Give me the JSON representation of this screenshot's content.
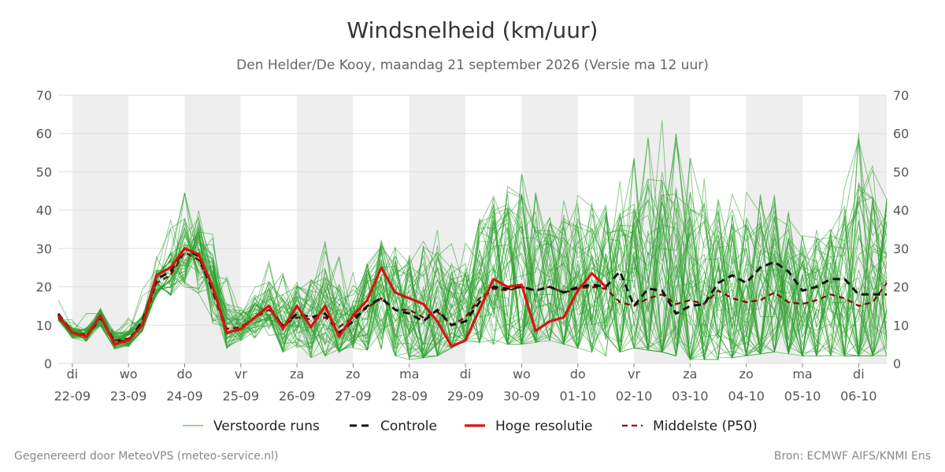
{
  "header": {
    "title": "Windsnelheid (km/uur)",
    "subtitle": "Den Helder/De Kooy, maandag 21 september 2026 (Versie ma 12 uur)"
  },
  "footer": {
    "left": "Gegenereerd door MeteoVPS (meteo-service.nl)",
    "right": "Bron: ECMWF AIFS/KNMI Ens"
  },
  "colors": {
    "ensemble": "#2ca02c",
    "control": "#111111",
    "highres": "#dd1111",
    "median": "#8b0000",
    "weekend_band": "#eeeeee",
    "grid": "#dddddd"
  },
  "chart_data": {
    "type": "line",
    "title": "Windsnelheid (km/uur)",
    "subtitle": "Den Helder/De Kooy, maandag 21 september 2026 (Versie ma 12 uur)",
    "ylim": [
      0,
      70
    ],
    "yticks": [
      0,
      10,
      20,
      30,
      40,
      50,
      60,
      70
    ],
    "xlim": [
      -0.25,
      14.5
    ],
    "grid": true,
    "legend_position": "bottom",
    "x_ticks": [
      {
        "day": "di",
        "date": "22-09"
      },
      {
        "day": "wo",
        "date": "23-09"
      },
      {
        "day": "do",
        "date": "24-09"
      },
      {
        "day": "vr",
        "date": "25-09"
      },
      {
        "day": "za",
        "date": "26-09"
      },
      {
        "day": "zo",
        "date": "27-09"
      },
      {
        "day": "ma",
        "date": "28-09"
      },
      {
        "day": "di",
        "date": "29-09"
      },
      {
        "day": "wo",
        "date": "30-09"
      },
      {
        "day": "do",
        "date": "01-10"
      },
      {
        "day": "vr",
        "date": "02-10"
      },
      {
        "day": "za",
        "date": "03-10"
      },
      {
        "day": "zo",
        "date": "04-10"
      },
      {
        "day": "ma",
        "date": "05-10"
      },
      {
        "day": "di",
        "date": "06-10"
      }
    ],
    "shaded_bands": [
      [
        0,
        1
      ],
      [
        2,
        3
      ],
      [
        4,
        5
      ],
      [
        6,
        7
      ],
      [
        8,
        9
      ],
      [
        10,
        11
      ],
      [
        12,
        13
      ],
      [
        14,
        14.5
      ]
    ],
    "series": [
      {
        "name": "Verstoorde runs",
        "style": "thin-green",
        "members": 50,
        "envelope_x": [
          -0.25,
          0,
          0.5,
          1,
          1.5,
          2,
          2.5,
          3,
          3.5,
          4,
          4.5,
          5,
          5.5,
          6,
          6.5,
          7,
          7.5,
          8,
          8.5,
          9,
          9.5,
          10,
          10.5,
          11,
          11.5,
          12,
          12.5,
          13,
          13.5,
          14,
          14.5
        ],
        "envelope_low": [
          11,
          3,
          3,
          2,
          15,
          12,
          4,
          4,
          5,
          1,
          2,
          4,
          3,
          1,
          2,
          6,
          5,
          5,
          6,
          4,
          2,
          4,
          3,
          1,
          1,
          2,
          3,
          2,
          2,
          2,
          2
        ],
        "envelope_high": [
          17,
          12,
          16,
          12,
          29,
          46,
          34,
          15,
          27,
          22,
          32,
          24,
          33,
          29,
          35,
          32,
          44,
          50,
          40,
          45,
          42,
          55,
          66,
          55,
          44,
          45,
          45,
          35,
          35,
          61,
          43
        ]
      },
      {
        "name": "Controle",
        "style": "dashed-black",
        "x": [
          -0.25,
          0,
          0.25,
          0.5,
          0.75,
          1,
          1.25,
          1.5,
          1.75,
          2,
          2.25,
          2.5,
          2.75,
          3,
          3.25,
          3.5,
          3.75,
          4,
          4.25,
          4.5,
          4.75,
          5,
          5.25,
          5.5,
          5.75,
          6,
          6.25,
          6.5,
          6.75,
          7,
          7.25,
          7.5,
          7.75,
          8,
          8.25,
          8.5,
          8.75,
          9,
          9.25,
          9.5,
          9.75,
          10,
          10.25,
          10.5,
          10.75,
          11,
          11.25,
          11.5,
          11.75,
          12,
          12.25,
          12.5,
          12.75,
          13,
          13.25,
          13.5,
          13.75,
          14,
          14.25,
          14.5
        ],
        "values": [
          13,
          8,
          7,
          12,
          5.5,
          6,
          11,
          22,
          24,
          30,
          28,
          19,
          8,
          9,
          12,
          15,
          9.5,
          13,
          12,
          13,
          8,
          11,
          15,
          17,
          14,
          13,
          11,
          14,
          10,
          11,
          16,
          20,
          19.5,
          20,
          19,
          20,
          18.5,
          20,
          20.5,
          20,
          24,
          15,
          19.5,
          19,
          13,
          15,
          15.5,
          21,
          23,
          21,
          25,
          26.5,
          24,
          19,
          20,
          22,
          22,
          18,
          18,
          18
        ]
      },
      {
        "name": "Hoge resolutie",
        "style": "thick-red",
        "x": [
          -0.25,
          0,
          0.25,
          0.5,
          0.75,
          1,
          1.25,
          1.5,
          1.75,
          2,
          2.25,
          2.5,
          2.75,
          3,
          3.25,
          3.5,
          3.75,
          4,
          4.25,
          4.5,
          4.75,
          5,
          5.25,
          5.5,
          5.75,
          6,
          6.25,
          6.5,
          6.75,
          7,
          7.25,
          7.5,
          7.75,
          8,
          8.25,
          8.5,
          8.75,
          9,
          9.25,
          9.5
        ],
        "values": [
          12.5,
          8,
          7,
          12.5,
          5,
          6,
          10,
          23,
          25,
          30,
          28.5,
          20,
          8,
          9,
          12,
          15,
          9,
          15,
          9.5,
          15,
          7,
          12.5,
          16.5,
          25,
          18.5,
          17,
          15.5,
          11,
          4.5,
          6,
          14,
          22,
          20,
          20.5,
          8.5,
          11,
          12,
          19,
          23.5,
          20
        ]
      },
      {
        "name": "Middelste (P50)",
        "style": "dashed-darkred",
        "x": [
          -0.25,
          0,
          0.25,
          0.5,
          0.75,
          1,
          1.25,
          1.5,
          1.75,
          2,
          2.25,
          2.5,
          2.75,
          3,
          3.25,
          3.5,
          3.75,
          4,
          4.25,
          4.5,
          4.75,
          5,
          5.25,
          5.5,
          5.75,
          6,
          6.25,
          6.5,
          6.75,
          7,
          7.25,
          7.5,
          7.75,
          8,
          8.25,
          8.5,
          8.75,
          9,
          9.25,
          9.5,
          9.75,
          10,
          10.25,
          10.5,
          10.75,
          11,
          11.25,
          11.5,
          11.75,
          12,
          12.25,
          12.5,
          12.75,
          13,
          13.25,
          13.5,
          13.75,
          14,
          14.25,
          14.5
        ],
        "values": [
          12,
          8,
          7.5,
          12,
          6,
          6.5,
          10,
          21,
          23,
          29,
          27,
          19.5,
          9,
          9.5,
          12,
          14,
          10,
          12,
          11.5,
          12,
          9.5,
          12,
          14.5,
          17,
          14,
          14,
          12,
          13.5,
          10,
          12,
          17,
          19.5,
          19,
          20,
          19,
          20,
          18.5,
          19.5,
          20,
          19.5,
          16,
          15,
          17,
          18,
          15.5,
          16.5,
          15.5,
          19,
          17,
          16,
          16.5,
          18.5,
          16,
          15.5,
          16.5,
          18,
          17,
          15,
          16,
          21
        ]
      }
    ]
  },
  "legend": {
    "items": [
      {
        "label": "Verstoorde runs"
      },
      {
        "label": "Controle"
      },
      {
        "label": "Hoge resolutie"
      },
      {
        "label": "Middelste (P50)"
      }
    ]
  }
}
